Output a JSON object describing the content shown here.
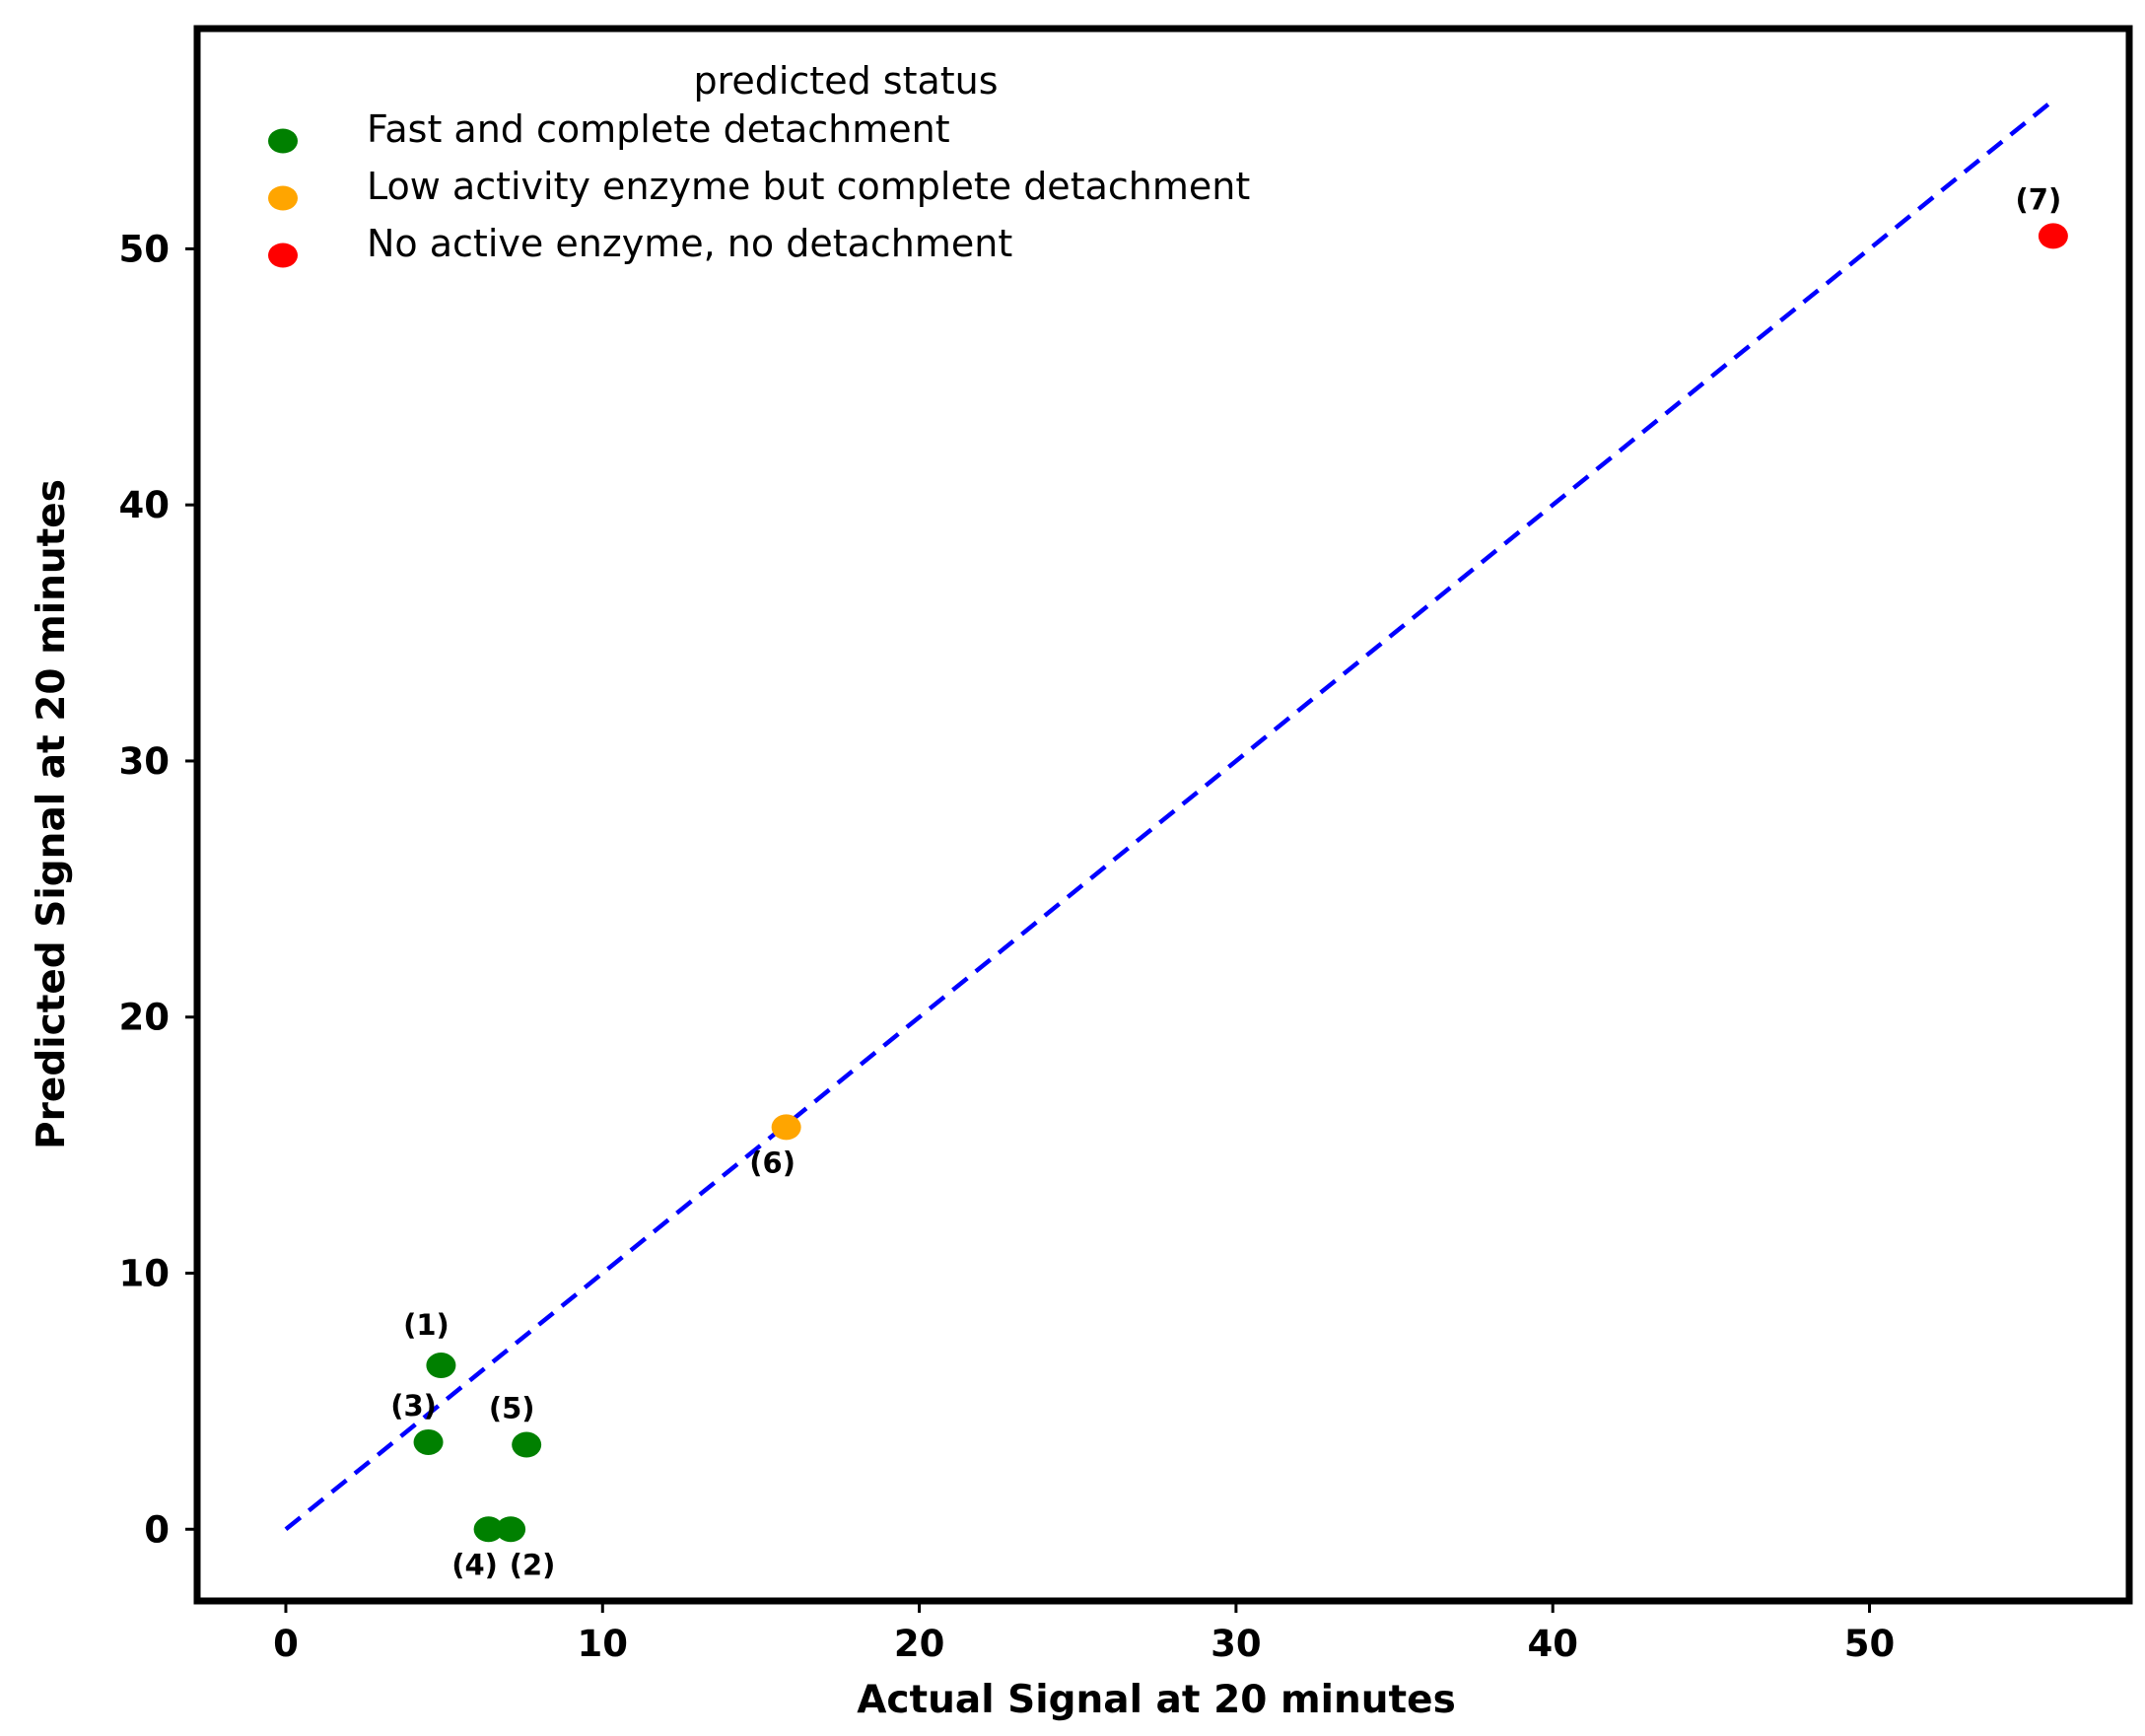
{
  "chart_data": {
    "type": "scatter",
    "xlabel": "Actual Signal at 20 minutes",
    "ylabel": "Predicted Signal at 20 minutes",
    "xlim": [
      -2.8,
      58.2
    ],
    "ylim": [
      -2.8,
      58.6
    ],
    "xticks": [
      0,
      10,
      20,
      30,
      40,
      50
    ],
    "yticks": [
      0,
      10,
      20,
      30,
      40,
      50
    ],
    "grid": false,
    "legend": {
      "title": "predicted status",
      "placement": "top-left",
      "entries": [
        {
          "label": "Fast and complete detachment",
          "color": "#008000"
        },
        {
          "label": "Low activity enzyme but complete detachment",
          "color": "#ffa500"
        },
        {
          "label": "No active enzyme, no detachment",
          "color": "#ff0000"
        }
      ]
    },
    "reference_line": {
      "style": "dashed",
      "color": "#0000ff",
      "x": [
        0,
        55.8
      ],
      "y": [
        0,
        55.8
      ]
    },
    "points": [
      {
        "label": "(1)",
        "x": 4.9,
        "y": 6.4,
        "status": "Fast and complete detachment",
        "color": "#008000",
        "label_pos": "above"
      },
      {
        "label": "(2)",
        "x": 7.1,
        "y": 0.0,
        "status": "Fast and complete detachment",
        "color": "#008000",
        "label_pos": "below-right"
      },
      {
        "label": "(3)",
        "x": 4.5,
        "y": 3.4,
        "status": "Fast and complete detachment",
        "color": "#008000",
        "label_pos": "above-left"
      },
      {
        "label": "(4)",
        "x": 6.4,
        "y": 0.0,
        "status": "Fast and complete detachment",
        "color": "#008000",
        "label_pos": "below-left"
      },
      {
        "label": "(5)",
        "x": 7.6,
        "y": 3.3,
        "status": "Fast and complete detachment",
        "color": "#008000",
        "label_pos": "above-left"
      },
      {
        "label": "(6)",
        "x": 15.8,
        "y": 15.7,
        "status": "Low activity enzyme but complete detachment",
        "color": "#ffa500",
        "label_pos": "below-left"
      },
      {
        "label": "(7)",
        "x": 55.8,
        "y": 50.5,
        "status": "No active enzyme, no detachment",
        "color": "#ff0000",
        "label_pos": "above-left"
      }
    ]
  }
}
